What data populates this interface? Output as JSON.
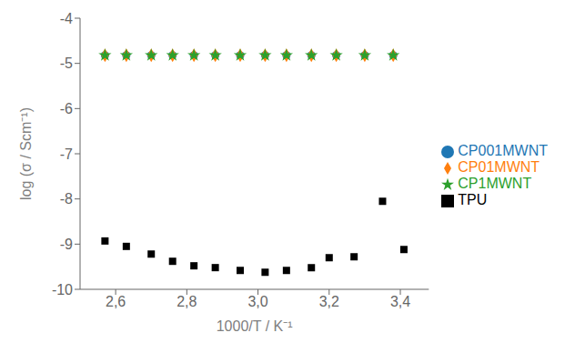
{
  "chart_data": {
    "type": "scatter",
    "title": "",
    "xlabel": "1000/T / K⁻¹",
    "ylabel": "log (σ / Scm⁻¹)",
    "xlim": [
      2.5,
      3.48
    ],
    "ylim": [
      -10,
      -4
    ],
    "xticks": [
      {
        "value": 2.6,
        "label": "2,6"
      },
      {
        "value": 2.8,
        "label": "2,8"
      },
      {
        "value": 3.0,
        "label": "3,0"
      },
      {
        "value": 3.2,
        "label": "3,2"
      },
      {
        "value": 3.4,
        "label": "3,4"
      }
    ],
    "yticks": [
      -10,
      -9,
      -8,
      -7,
      -6,
      -5,
      -4
    ],
    "grid": false,
    "legend": "right",
    "series": [
      {
        "name": "TPU",
        "color": "#000000",
        "marker": "square",
        "x": [
          2.57,
          2.63,
          2.7,
          2.76,
          2.82,
          2.88,
          2.95,
          3.02,
          3.08,
          3.15,
          3.2,
          3.27,
          3.35,
          3.41
        ],
        "values": [
          -8.93,
          -9.05,
          -9.22,
          -9.38,
          -9.48,
          -9.52,
          -9.58,
          -9.62,
          -9.58,
          -9.52,
          -9.3,
          -9.28,
          -8.05,
          -9.12
        ]
      },
      {
        "name": "CP001MWNT",
        "color": "#1f77b4",
        "marker": "circle",
        "x": [
          2.57,
          2.63,
          2.7,
          2.76,
          2.82,
          2.88,
          2.95,
          3.02,
          3.08,
          3.15,
          3.22,
          3.3,
          3.38
        ],
        "values": [
          -4.82,
          -4.82,
          -4.82,
          -4.82,
          -4.82,
          -4.82,
          -4.82,
          -4.82,
          -4.82,
          -4.82,
          -4.82,
          -4.82,
          -4.82
        ]
      },
      {
        "name": "CP01MWNT",
        "color": "#ff7f0e",
        "marker": "diamond",
        "x": [
          2.57,
          2.63,
          2.7,
          2.76,
          2.82,
          2.88,
          2.95,
          3.02,
          3.08,
          3.15,
          3.22,
          3.3,
          3.38
        ],
        "values": [
          -4.82,
          -4.82,
          -4.82,
          -4.82,
          -4.82,
          -4.82,
          -4.82,
          -4.82,
          -4.82,
          -4.82,
          -4.82,
          -4.82,
          -4.82
        ]
      },
      {
        "name": "CP1MWNT",
        "color": "#2ca02c",
        "marker": "star",
        "x": [
          2.57,
          2.63,
          2.7,
          2.76,
          2.82,
          2.88,
          2.95,
          3.02,
          3.08,
          3.15,
          3.22,
          3.3,
          3.38
        ],
        "values": [
          -4.82,
          -4.82,
          -4.82,
          -4.82,
          -4.82,
          -4.82,
          -4.82,
          -4.82,
          -4.82,
          -4.82,
          -4.82,
          -4.82,
          -4.82
        ]
      }
    ]
  }
}
